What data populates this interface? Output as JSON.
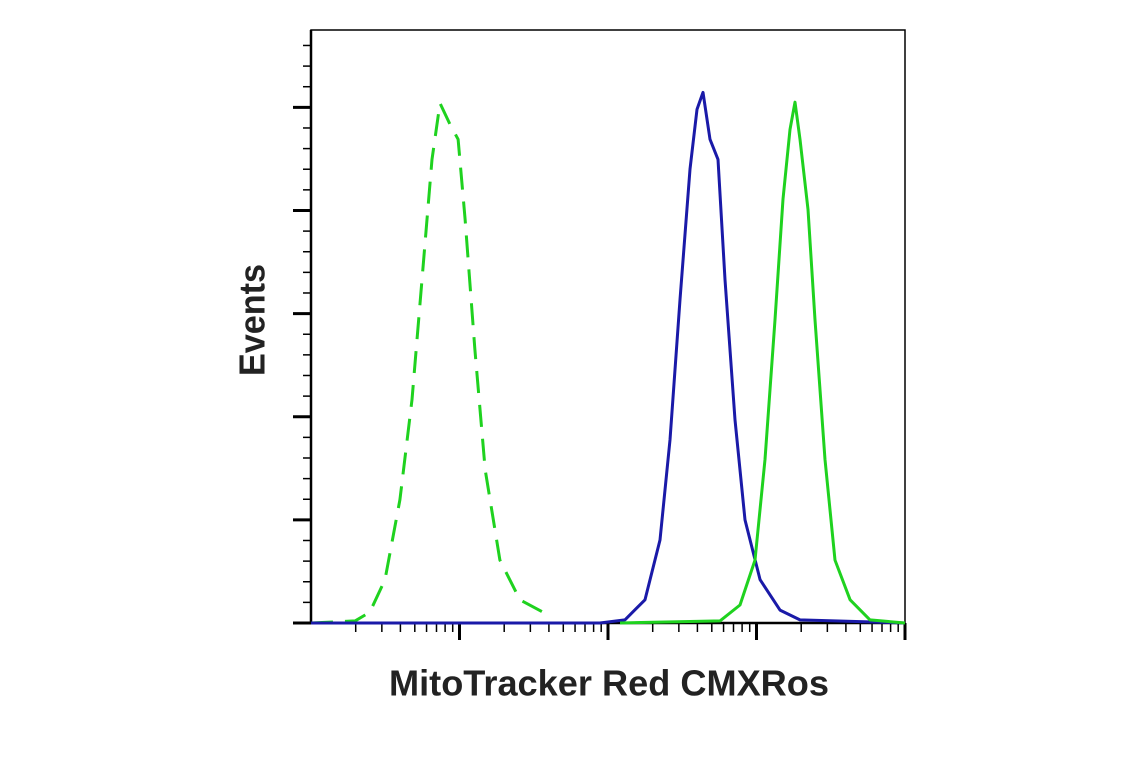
{
  "chart_data": {
    "type": "line",
    "x_label": "MitoTracker Red CMXRos",
    "y_label": "Events",
    "xscale": "log",
    "xlim": [
      10,
      100000
    ],
    "xticks": [
      100,
      1000,
      10000,
      100000
    ],
    "xminorticks": [
      20,
      30,
      40,
      50,
      60,
      70,
      80,
      90,
      200,
      300,
      400,
      500,
      600,
      700,
      800,
      900,
      2000,
      3000,
      4000,
      5000,
      6000,
      7000,
      8000,
      9000,
      20000,
      30000,
      40000,
      50000,
      60000,
      70000,
      80000,
      90000
    ],
    "ylim": [
      0,
      115
    ],
    "yticks": [
      0,
      20,
      40,
      60,
      80,
      100
    ],
    "yminorticks": [
      4,
      8,
      12,
      16,
      24,
      28,
      32,
      36,
      44,
      48,
      52,
      56,
      64,
      68,
      72,
      76,
      84,
      88,
      92,
      96,
      104,
      108,
      112
    ],
    "series": [
      {
        "color": "#1fd21f",
        "dashed": true,
        "x": [
          10,
          19.8,
          24.9,
          31.5,
          39.7,
          47.9,
          55.9,
          65.3,
          73.9,
          86.3,
          97.8,
          109,
          127,
          149,
          187,
          255,
          376
        ],
        "values": [
          0,
          0.4,
          2.1,
          8.4,
          23.9,
          43.3,
          66.6,
          89.9,
          100.8,
          96.7,
          93.8,
          78.3,
          53.0,
          29.7,
          12.2,
          4.5,
          1.9
        ]
      },
      {
        "color": "#1a1aa8",
        "dashed": false,
        "x": [
          10,
          883,
          1300,
          1774,
          2239,
          2617,
          3055,
          3565,
          3975,
          4365,
          4864,
          5508,
          6138,
          7165,
          8373,
          10570,
          14390,
          19630,
          100000
        ],
        "values": [
          0,
          0,
          0.6,
          4.5,
          16.1,
          35.5,
          62.7,
          88.0,
          99.6,
          102.9,
          93.8,
          89.9,
          66.6,
          39.4,
          20.0,
          8.4,
          2.5,
          0.6,
          0
        ]
      },
      {
        "color": "#1fd21f",
        "dashed": false,
        "x": [
          1205,
          5675,
          7745,
          9772,
          11400,
          13330,
          15080,
          16820,
          18160,
          19630,
          22220,
          24770,
          28910,
          33800,
          42660,
          58080,
          100000
        ],
        "values": [
          0,
          0.4,
          3.5,
          12.2,
          31.7,
          58.8,
          82.2,
          95.7,
          101.0,
          93.8,
          80.2,
          58.8,
          31.7,
          12.2,
          4.5,
          0.6,
          0
        ]
      }
    ]
  }
}
